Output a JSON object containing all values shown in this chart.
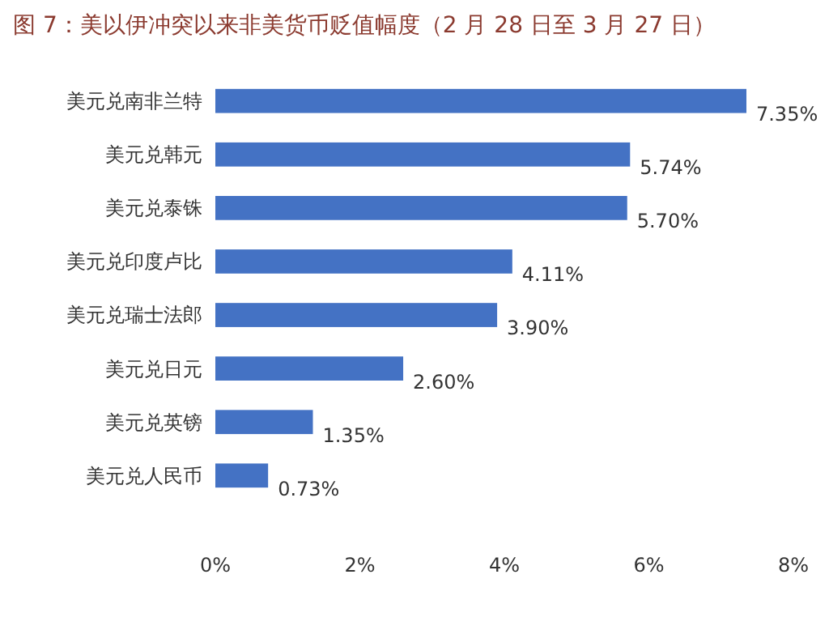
{
  "chart_data": {
    "type": "bar",
    "orientation": "horizontal",
    "title": "图 7：美以伊冲突以来非美货币贬值幅度（2 月 28 日至 3 月 27 日）",
    "categories": [
      "美元兑南非兰特",
      "美元兑韩元",
      "美元兑泰铢",
      "美元兑印度卢比",
      "美元兑瑞士法郎",
      "美元兑日元",
      "美元兑英镑",
      "美元兑人民币"
    ],
    "values": [
      7.35,
      5.74,
      5.7,
      4.11,
      3.9,
      2.6,
      1.35,
      0.73
    ],
    "value_labels": [
      "7.35%",
      "5.74%",
      "5.70%",
      "4.11%",
      "3.90%",
      "2.60%",
      "1.35%",
      "0.73%"
    ],
    "color": "#4472c4",
    "xlim": [
      0,
      8
    ],
    "xticks": [
      {
        "value": 0,
        "label": "0%"
      },
      {
        "value": 2,
        "label": "2%"
      },
      {
        "value": 4,
        "label": "4%"
      },
      {
        "value": 6,
        "label": "6%"
      },
      {
        "value": 8,
        "label": "8%"
      }
    ],
    "grid": false
  }
}
